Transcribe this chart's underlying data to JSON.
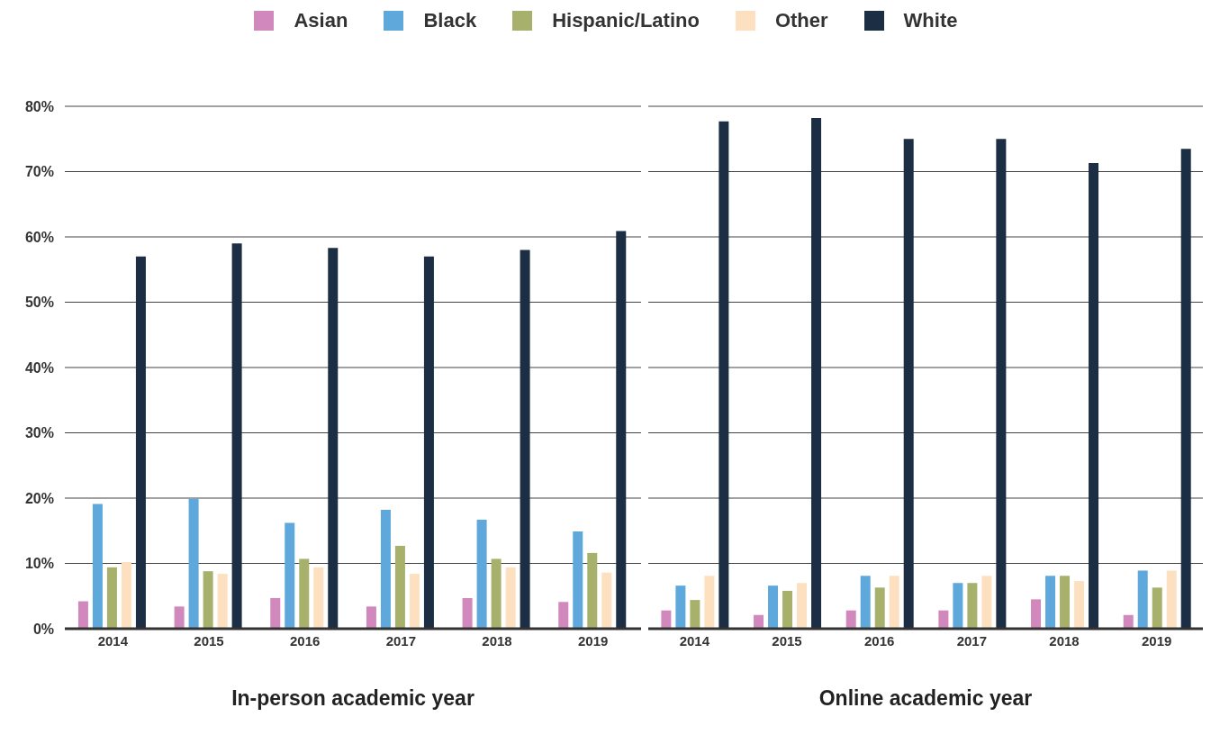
{
  "chart_data": [
    {
      "type": "bar",
      "xlabel": "In-person academic year",
      "categories": [
        "2014",
        "2015",
        "2016",
        "2017",
        "2018",
        "2019"
      ],
      "ylim": [
        0,
        80
      ],
      "yticks": [
        {
          "value": 0,
          "label": "0%"
        },
        {
          "value": 10,
          "label": "10%"
        },
        {
          "value": 20,
          "label": "20%"
        },
        {
          "value": 30,
          "label": "30%"
        },
        {
          "value": 40,
          "label": "40%"
        },
        {
          "value": 50,
          "label": "50%"
        },
        {
          "value": 60,
          "label": "60%"
        },
        {
          "value": 70,
          "label": "70%"
        },
        {
          "value": 80,
          "label": "80%"
        }
      ],
      "grid": "y",
      "legend": "top",
      "series": [
        {
          "name": "Asian",
          "color": "#d088bd",
          "values": [
            4.2,
            3.4,
            4.7,
            3.4,
            4.7,
            4.1
          ]
        },
        {
          "name": "Black",
          "color": "#5ea8dc",
          "values": [
            19.1,
            19.9,
            16.2,
            18.2,
            16.7,
            14.9
          ]
        },
        {
          "name": "Hispanic/Latino",
          "color": "#a7b16c",
          "values": [
            9.4,
            8.8,
            10.7,
            12.7,
            10.7,
            11.6
          ]
        },
        {
          "name": "Other",
          "color": "#fde0c0",
          "values": [
            10.2,
            8.4,
            9.4,
            8.4,
            9.4,
            8.6
          ]
        },
        {
          "name": "White",
          "color": "#1c2e44",
          "values": [
            57.0,
            59.0,
            58.3,
            57.0,
            58.0,
            60.9
          ]
        }
      ]
    },
    {
      "type": "bar",
      "xlabel": "Online academic year",
      "categories": [
        "2014",
        "2015",
        "2016",
        "2017",
        "2018",
        "2019"
      ],
      "ylim": [
        0,
        80
      ],
      "yticks": [
        0,
        10,
        20,
        30,
        40,
        50,
        60,
        70,
        80
      ],
      "grid": "y",
      "tick_labels": "x",
      "series": [
        {
          "color": "#d088bd",
          "values": [
            2.8,
            2.1,
            2.8,
            2.8,
            4.5,
            2.1
          ]
        },
        {
          "color": "#5ea8dc",
          "values": [
            6.6,
            6.6,
            8.1,
            7.0,
            8.1,
            8.9
          ]
        },
        {
          "color": "#a7b16c",
          "values": [
            4.4,
            5.8,
            6.3,
            7.0,
            8.1,
            6.3
          ]
        },
        {
          "color": "#fde0c0",
          "values": [
            8.1,
            7.0,
            8.1,
            8.1,
            7.3,
            8.9
          ]
        },
        {
          "color": "#1c2e44",
          "values": [
            77.7,
            78.2,
            75.0,
            75.0,
            71.3,
            73.5
          ]
        }
      ]
    }
  ]
}
